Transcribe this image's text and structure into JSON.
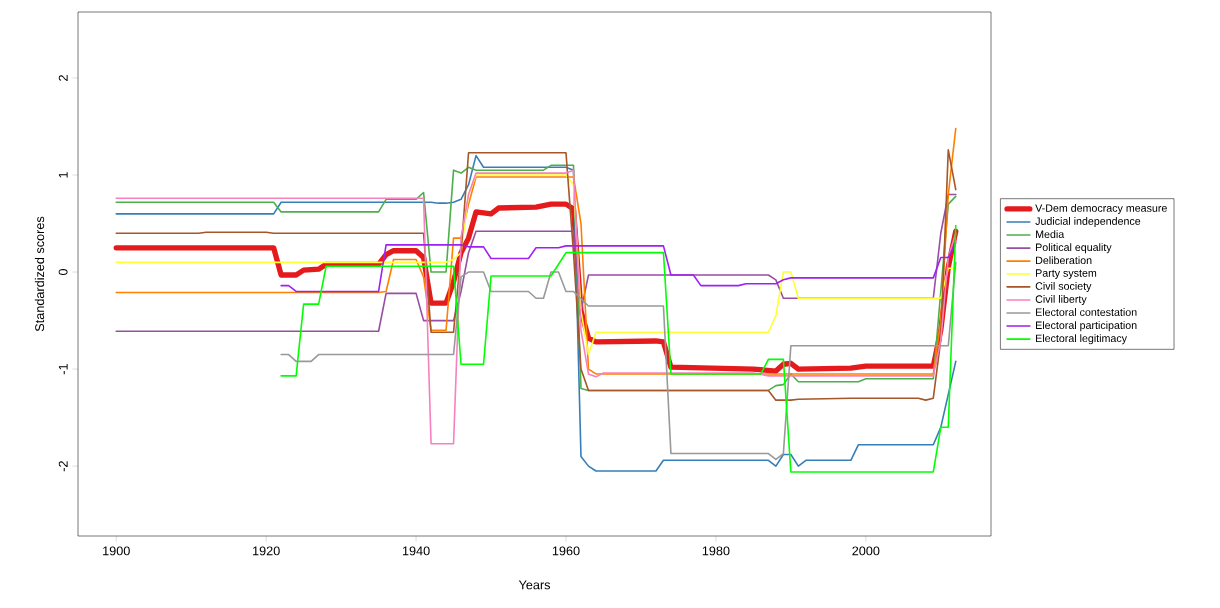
{
  "chart_data": {
    "type": "line",
    "xlabel": "Years",
    "ylabel": "Standardized scores",
    "xlim": [
      1894.9,
      2016.7
    ],
    "ylim": [
      -2.72,
      2.68
    ],
    "xticks": [
      1900,
      1920,
      1940,
      1960,
      1980,
      2000
    ],
    "yticks": [
      -2,
      -1,
      0,
      1,
      2
    ],
    "legend": "right",
    "series": [
      {
        "name": "V-Dem democracy measure",
        "color": "#e41a1c",
        "x": [
          1900,
          1921,
          1922,
          1924,
          1925,
          1927,
          1928,
          1935,
          1936,
          1937,
          1940,
          1941,
          1942,
          1944,
          1945,
          1946,
          1947,
          1948,
          1950,
          1951,
          1956,
          1958,
          1960,
          1961,
          1962,
          1963,
          1964,
          1972,
          1973,
          1974,
          1985,
          1988,
          1989,
          1990,
          1991,
          1998,
          2000,
          2009,
          2010,
          2011,
          2012
        ],
        "values": [
          0.25,
          0.25,
          -0.03,
          -0.03,
          0.02,
          0.03,
          0.08,
          0.08,
          0.18,
          0.22,
          0.22,
          0.15,
          -0.32,
          -0.32,
          -0.1,
          0.2,
          0.35,
          0.62,
          0.6,
          0.66,
          0.67,
          0.7,
          0.7,
          0.65,
          -0.4,
          -0.68,
          -0.72,
          -0.71,
          -0.72,
          -0.98,
          -1.0,
          -1.02,
          -0.95,
          -0.94,
          -1.0,
          -0.99,
          -0.97,
          -0.97,
          -0.6,
          0.05,
          0.42
        ]
      },
      {
        "name": "Judicial independence",
        "color": "#377eb8",
        "x": [
          1900,
          1921,
          1922,
          1942,
          1943,
          1944,
          1945,
          1946,
          1947,
          1948,
          1949,
          1960,
          1961,
          1962,
          1963,
          1964,
          1972,
          1973,
          1987,
          1988,
          1989,
          1990,
          1991,
          1992,
          1998,
          1999,
          2009,
          2010,
          2012
        ],
        "values": [
          0.6,
          0.6,
          0.72,
          0.72,
          0.71,
          0.71,
          0.72,
          0.75,
          0.9,
          1.2,
          1.08,
          1.08,
          1.05,
          -1.9,
          -2.0,
          -2.05,
          -2.05,
          -1.94,
          -1.94,
          -2.0,
          -1.88,
          -1.88,
          -2.0,
          -1.94,
          -1.94,
          -1.78,
          -1.78,
          -1.6,
          -0.92
        ]
      },
      {
        "name": "Media",
        "color": "#4daf4a",
        "x": [
          1900,
          1921,
          1922,
          1935,
          1936,
          1940,
          1941,
          1942,
          1944,
          1945,
          1946,
          1947,
          1948,
          1957,
          1958,
          1961,
          1962,
          1963,
          1987,
          1988,
          1989,
          1990,
          1991,
          1999,
          2000,
          2009,
          2011,
          2012
        ],
        "values": [
          0.72,
          0.72,
          0.62,
          0.62,
          0.75,
          0.75,
          0.82,
          0.0,
          0.0,
          1.05,
          1.02,
          1.08,
          1.05,
          1.05,
          1.1,
          1.1,
          -1.2,
          -1.22,
          -1.22,
          -1.17,
          -1.16,
          -1.05,
          -1.13,
          -1.13,
          -1.1,
          -1.1,
          0.7,
          0.78
        ]
      },
      {
        "name": "Political equality",
        "color": "#984ea3",
        "x": [
          1900,
          1935,
          1936,
          1940,
          1941,
          1945,
          1946,
          1947,
          1948,
          1961,
          1962,
          1963,
          1987,
          1988,
          1989,
          2009,
          2010,
          2011,
          2012
        ],
        "values": [
          -0.61,
          -0.61,
          -0.22,
          -0.22,
          -0.5,
          -0.5,
          -0.2,
          0.2,
          0.42,
          0.42,
          -0.4,
          -0.03,
          -0.03,
          -0.08,
          -0.27,
          -0.27,
          0.4,
          0.8,
          0.8
        ]
      },
      {
        "name": "Deliberation",
        "color": "#ff7f00",
        "x": [
          1900,
          1935,
          1936,
          1937,
          1940,
          1941,
          1942,
          1944,
          1945,
          1946,
          1947,
          1948,
          1961,
          1962,
          1963,
          1964,
          2009,
          2010,
          2011,
          2012
        ],
        "values": [
          -0.21,
          -0.21,
          -0.2,
          0.13,
          0.13,
          -0.05,
          -0.6,
          -0.6,
          0.35,
          0.35,
          0.7,
          0.98,
          0.98,
          0.5,
          -1.0,
          -1.05,
          -1.05,
          -0.5,
          0.8,
          1.48
        ]
      },
      {
        "name": "Party system",
        "color": "#ffff33",
        "x": [
          1900,
          1944,
          1945,
          1946,
          1947,
          1948,
          1960,
          1961,
          1962,
          1963,
          1964,
          1987,
          1988,
          1989,
          1990,
          1991,
          2009,
          2010,
          2011,
          2012
        ],
        "values": [
          0.1,
          0.1,
          0.13,
          0.2,
          0.8,
          1.0,
          1.0,
          0.9,
          -0.4,
          -0.85,
          -0.62,
          -0.62,
          -0.45,
          0.0,
          0.0,
          -0.27,
          -0.27,
          -0.27,
          0.04,
          0.04
        ]
      },
      {
        "name": "Civil society",
        "color": "#a65628",
        "x": [
          1900,
          1911,
          1912,
          1920,
          1921,
          1941,
          1942,
          1945,
          1946,
          1947,
          1960,
          1961,
          1962,
          1963,
          1987,
          1988,
          1990,
          1991,
          1998,
          2007,
          2008,
          2009,
          2010,
          2011,
          2012
        ],
        "values": [
          0.4,
          0.4,
          0.41,
          0.41,
          0.4,
          0.4,
          -0.62,
          -0.62,
          0.2,
          1.23,
          1.23,
          0.2,
          -1.0,
          -1.22,
          -1.22,
          -1.32,
          -1.32,
          -1.31,
          -1.3,
          -1.3,
          -1.32,
          -1.3,
          -0.7,
          1.26,
          0.85
        ]
      },
      {
        "name": "Civil liberty",
        "color": "#f781bf",
        "x": [
          1900,
          1941,
          1942,
          1945,
          1946,
          1947,
          1948,
          1960,
          1961,
          1962,
          1963,
          1964,
          1965,
          1985,
          1987,
          2009,
          2010,
          2011,
          2012
        ],
        "values": [
          0.76,
          0.76,
          -1.77,
          -1.77,
          0.35,
          0.8,
          1.02,
          1.02,
          1.05,
          -0.6,
          -1.05,
          -1.08,
          -1.04,
          -1.04,
          -1.07,
          -1.07,
          -0.7,
          0.15,
          0.4
        ]
      },
      {
        "name": "Electoral contestation",
        "color": "#999999",
        "x": [
          1922,
          1923,
          1924,
          1926,
          1927,
          1945,
          1946,
          1947,
          1949,
          1950,
          1955,
          1956,
          1957,
          1958,
          1959,
          1960,
          1961,
          1963,
          1973,
          1974,
          1987,
          1988,
          1989,
          1990,
          2011,
          2012
        ],
        "values": [
          -0.85,
          -0.85,
          -0.92,
          -0.92,
          -0.85,
          -0.85,
          -0.05,
          0.0,
          0.0,
          -0.2,
          -0.2,
          -0.27,
          -0.27,
          0.0,
          0.0,
          -0.2,
          -0.2,
          -0.35,
          -0.35,
          -1.87,
          -1.87,
          -1.93,
          -1.87,
          -0.76,
          -0.76,
          0.1
        ]
      },
      {
        "name": "Electoral participation",
        "color": "#a020f0",
        "x": [
          1922,
          1923,
          1924,
          1935,
          1936,
          1946,
          1947,
          1949,
          1950,
          1955,
          1956,
          1959,
          1960,
          1973,
          1974,
          1977,
          1978,
          1983,
          1984,
          1988,
          1989,
          1990,
          2009,
          2010,
          2011,
          2012
        ],
        "values": [
          -0.14,
          -0.14,
          -0.2,
          -0.2,
          0.28,
          0.28,
          0.26,
          0.26,
          0.14,
          0.14,
          0.25,
          0.25,
          0.27,
          0.27,
          -0.03,
          -0.03,
          -0.14,
          -0.14,
          -0.12,
          -0.12,
          -0.08,
          -0.06,
          -0.06,
          0.15,
          0.15,
          0.3
        ]
      },
      {
        "name": "Electoral legitimacy",
        "color": "#00ff00",
        "x": [
          1922,
          1924,
          1925,
          1927,
          1928,
          1945,
          1946,
          1949,
          1950,
          1958,
          1960,
          1973,
          1974,
          1986,
          1987,
          1989,
          1990,
          2009,
          2010,
          2011,
          2012
        ],
        "values": [
          -1.07,
          -1.07,
          -0.33,
          -0.33,
          0.06,
          0.06,
          -0.95,
          -0.95,
          -0.04,
          -0.04,
          0.2,
          0.2,
          -1.05,
          -1.05,
          -0.9,
          -0.9,
          -2.06,
          -2.06,
          -1.6,
          -1.6,
          0.48
        ]
      }
    ]
  }
}
